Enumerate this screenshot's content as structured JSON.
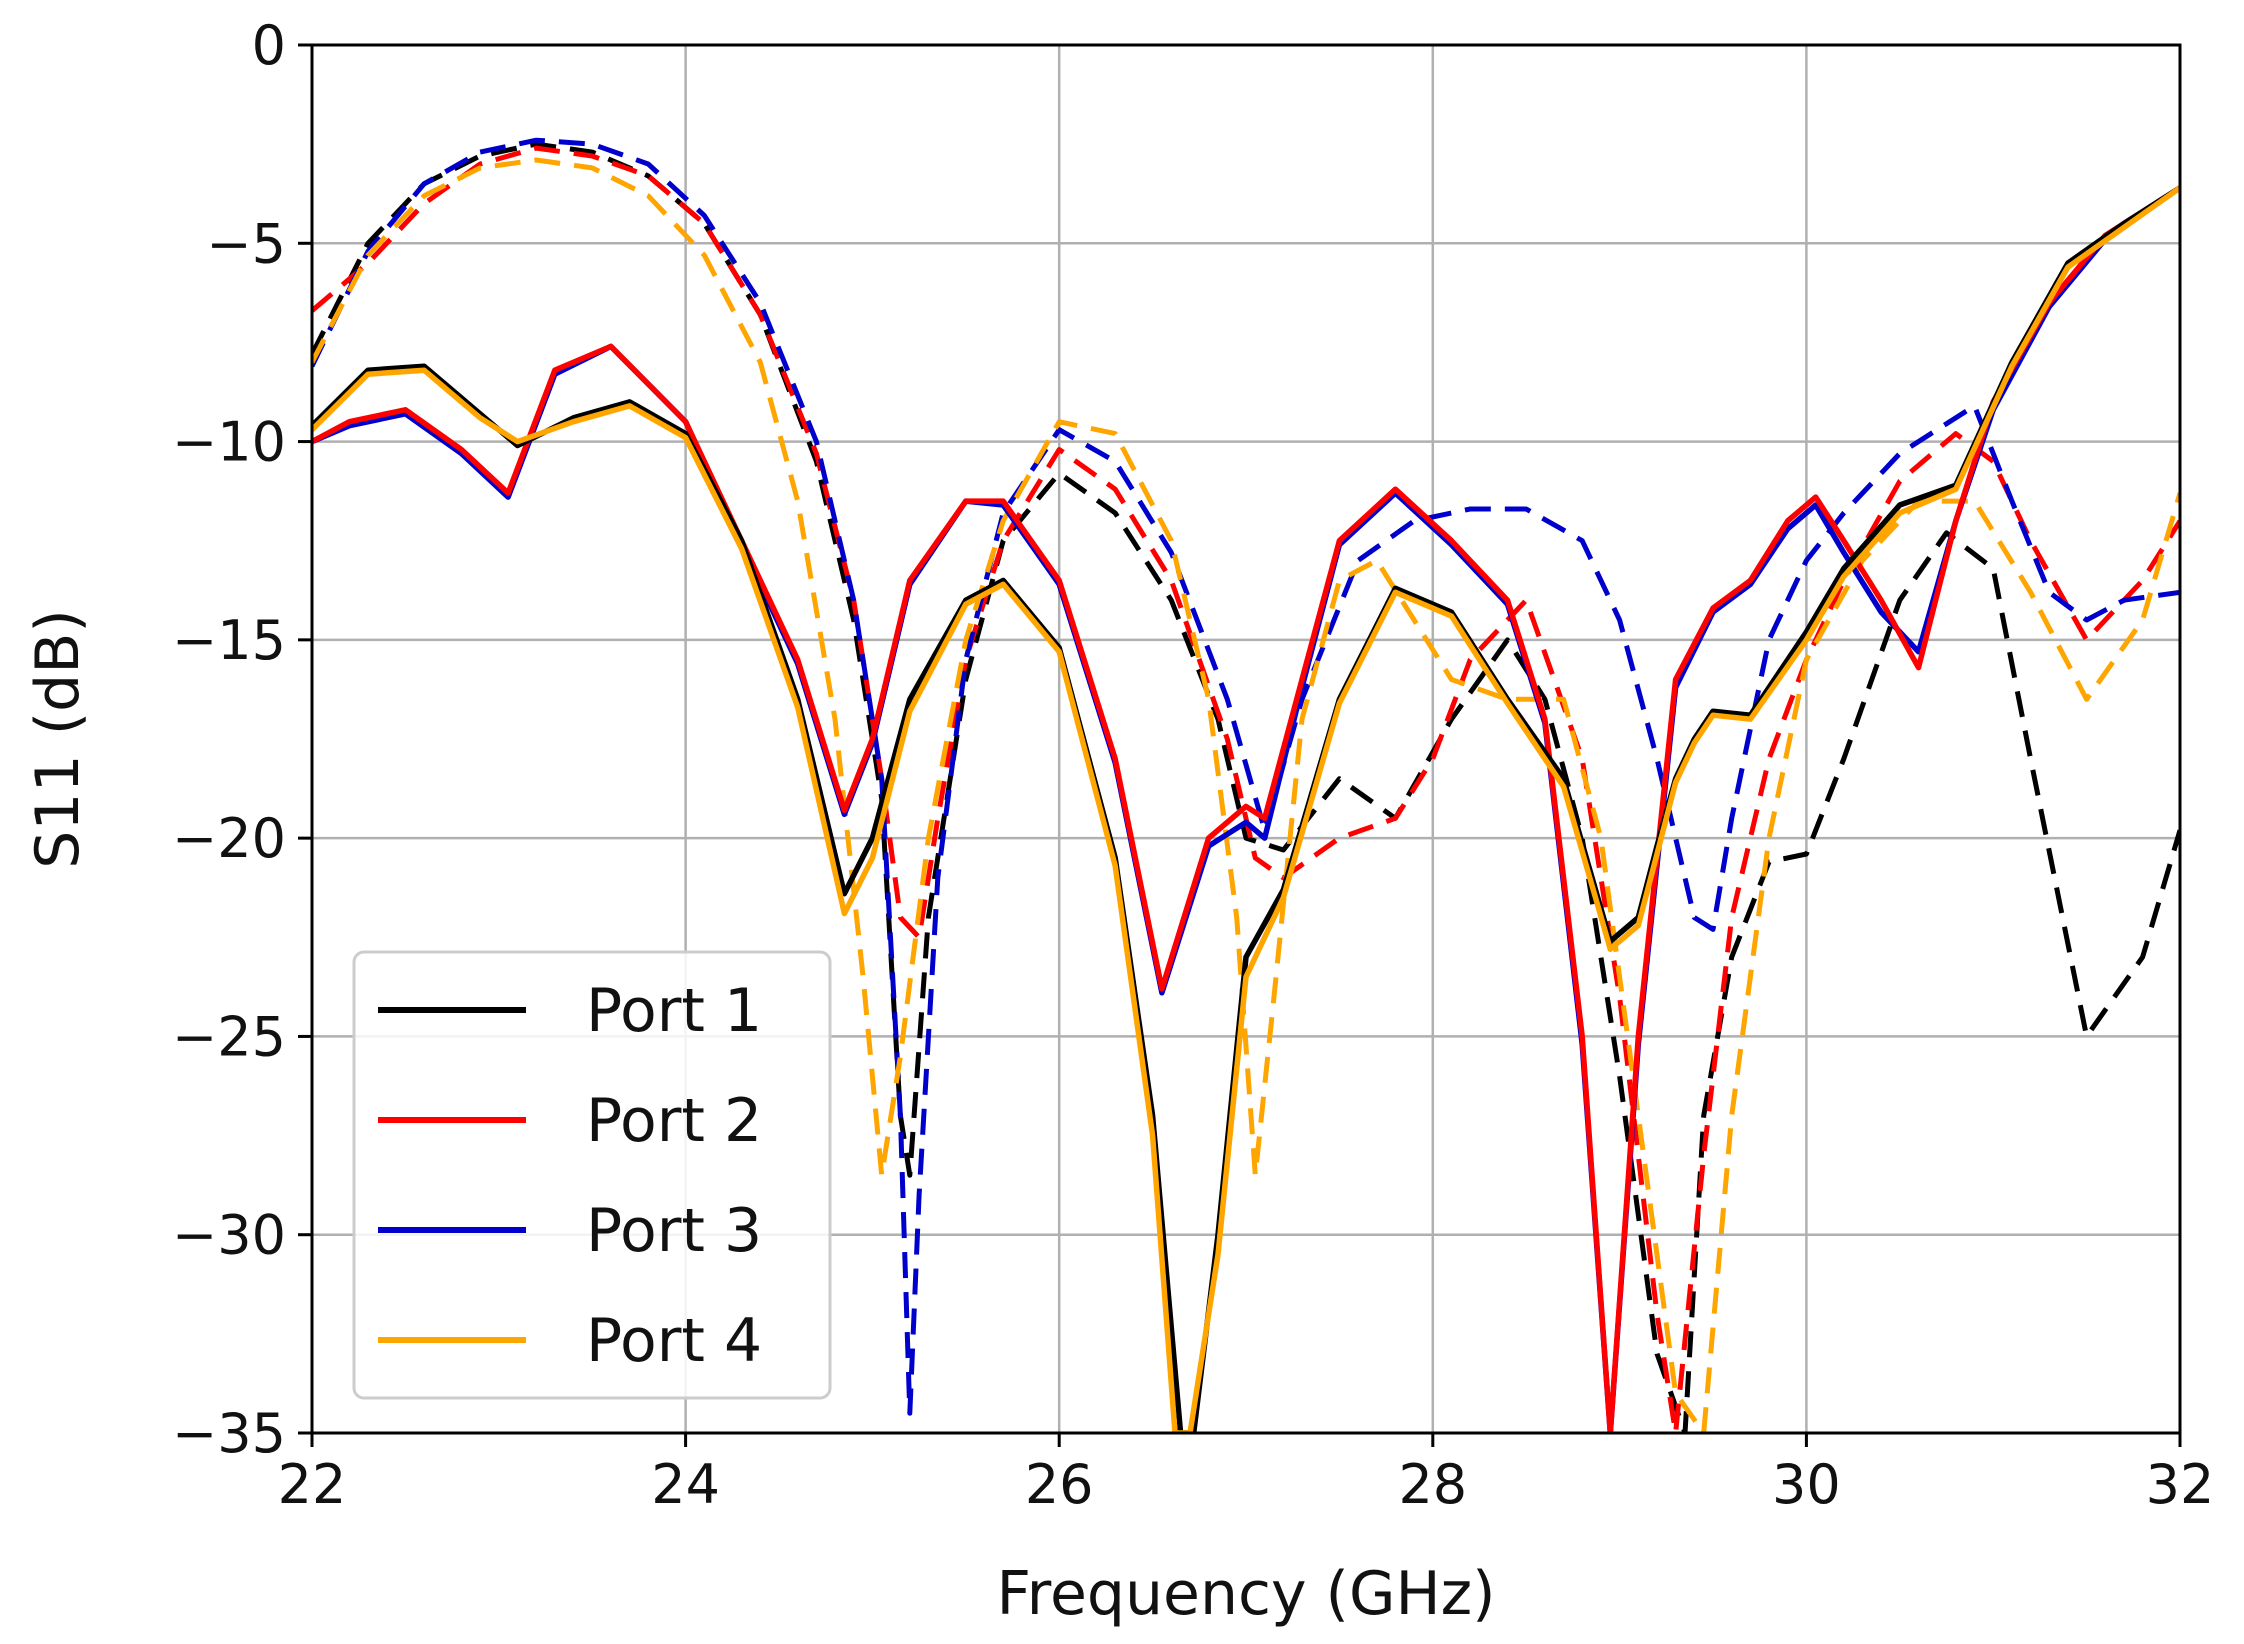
{
  "chart_data": {
    "type": "line",
    "title": "",
    "xlabel": "Frequency (GHz)",
    "ylabel": "S11 (dB)",
    "xlim": [
      22,
      32
    ],
    "ylim": [
      -35,
      0
    ],
    "xticks": [
      22,
      24,
      26,
      28,
      30,
      32
    ],
    "yticks": [
      0,
      -5,
      -10,
      -15,
      -20,
      -25,
      -30,
      -35
    ],
    "xtick_labels": [
      "22",
      "24",
      "26",
      "28",
      "30",
      "32"
    ],
    "ytick_labels": [
      "0",
      "−5",
      "−10",
      "−15",
      "−20",
      "−25",
      "−30",
      "−35"
    ],
    "grid": true,
    "legend_position": "bottom-left",
    "legend": [
      {
        "label": "Port 1",
        "color": "#000000"
      },
      {
        "label": "Port 2",
        "color": "#ff0000"
      },
      {
        "label": "Port 3",
        "color": "#0000cd"
      },
      {
        "label": "Port 4",
        "color": "#ffa500"
      }
    ],
    "series": [
      {
        "name": "Port 1",
        "style": "solid",
        "color": "#000000",
        "x": [
          22,
          22.3,
          22.6,
          22.9,
          23.1,
          23.4,
          23.7,
          24.0,
          24.3,
          24.6,
          24.85,
          25.0,
          25.2,
          25.5,
          25.7,
          26.0,
          26.3,
          26.5,
          26.65,
          26.72,
          26.85,
          27.0,
          27.2,
          27.5,
          27.8,
          28.1,
          28.4,
          28.7,
          28.95,
          29.1,
          29.2,
          29.3,
          29.4,
          29.5,
          29.7,
          30.0,
          30.2,
          30.5,
          30.8,
          31.1,
          31.4,
          31.7,
          32.0
        ],
        "y": [
          -9.6,
          -8.2,
          -8.1,
          -9.3,
          -10.1,
          -9.4,
          -9.0,
          -9.8,
          -12.5,
          -16.5,
          -21.4,
          -20.0,
          -16.5,
          -14.0,
          -13.5,
          -15.2,
          -20.5,
          -27.0,
          -35,
          -35,
          -30.0,
          -23.0,
          -21.3,
          -16.5,
          -13.7,
          -14.3,
          -16.5,
          -18.5,
          -22.6,
          -22.0,
          -20.2,
          -18.5,
          -17.5,
          -16.8,
          -16.9,
          -14.8,
          -13.2,
          -11.6,
          -11.1,
          -8.0,
          -5.5,
          -4.5,
          -3.6
        ]
      },
      {
        "name": "Port 2",
        "style": "solid",
        "color": "#ff0000",
        "x": [
          22,
          22.2,
          22.5,
          22.8,
          23.05,
          23.3,
          23.6,
          24.0,
          24.3,
          24.6,
          24.85,
          25.0,
          25.2,
          25.5,
          25.7,
          26.0,
          26.3,
          26.55,
          26.8,
          27.0,
          27.1,
          27.3,
          27.5,
          27.8,
          28.1,
          28.4,
          28.6,
          28.8,
          28.95,
          29.1,
          29.3,
          29.5,
          29.7,
          29.9,
          30.05,
          30.2,
          30.4,
          30.6,
          30.8,
          31.0,
          31.3,
          31.6,
          32.0
        ],
        "y": [
          -10.0,
          -9.5,
          -9.2,
          -10.2,
          -11.3,
          -8.2,
          -7.6,
          -9.5,
          -12.5,
          -15.5,
          -19.3,
          -17.5,
          -13.5,
          -11.5,
          -11.5,
          -13.5,
          -18.0,
          -23.8,
          -20.0,
          -19.2,
          -19.5,
          -16.0,
          -12.5,
          -11.2,
          -12.5,
          -14.0,
          -17.0,
          -25.0,
          -35,
          -25.0,
          -16.0,
          -14.2,
          -13.5,
          -12.0,
          -11.4,
          -12.5,
          -14.0,
          -15.7,
          -12.0,
          -9.0,
          -6.5,
          -4.8,
          -3.6
        ]
      },
      {
        "name": "Port 3",
        "style": "solid",
        "color": "#0000cd",
        "x": [
          22,
          22.2,
          22.5,
          22.8,
          23.05,
          23.3,
          23.6,
          24.0,
          24.3,
          24.6,
          24.85,
          25.0,
          25.2,
          25.5,
          25.7,
          26.0,
          26.3,
          26.55,
          26.8,
          27.0,
          27.1,
          27.3,
          27.5,
          27.8,
          28.1,
          28.4,
          28.6,
          28.8,
          28.95,
          29.1,
          29.3,
          29.5,
          29.7,
          29.9,
          30.05,
          30.2,
          30.4,
          30.6,
          30.8,
          31.0,
          31.3,
          31.6,
          32.0
        ],
        "y": [
          -10.0,
          -9.6,
          -9.3,
          -10.3,
          -11.4,
          -8.3,
          -7.6,
          -9.5,
          -12.6,
          -15.6,
          -19.4,
          -17.6,
          -13.6,
          -11.5,
          -11.6,
          -13.6,
          -18.1,
          -23.9,
          -20.2,
          -19.6,
          -20.0,
          -16.2,
          -12.6,
          -11.3,
          -12.6,
          -14.1,
          -17.1,
          -25.2,
          -35,
          -25.2,
          -16.2,
          -14.3,
          -13.6,
          -12.2,
          -11.6,
          -12.8,
          -14.3,
          -15.3,
          -12.0,
          -9.2,
          -6.6,
          -4.9,
          -3.6
        ]
      },
      {
        "name": "Port 4",
        "style": "solid",
        "color": "#ffa500",
        "x": [
          22,
          22.3,
          22.6,
          22.9,
          23.1,
          23.4,
          23.7,
          24.0,
          24.3,
          24.6,
          24.85,
          25.0,
          25.2,
          25.5,
          25.7,
          26.0,
          26.3,
          26.5,
          26.62,
          26.7,
          26.85,
          27.0,
          27.2,
          27.5,
          27.8,
          28.1,
          28.4,
          28.7,
          28.95,
          29.1,
          29.2,
          29.3,
          29.4,
          29.5,
          29.7,
          30.0,
          30.2,
          30.5,
          30.8,
          31.1,
          31.4,
          31.7,
          32.0
        ],
        "y": [
          -9.7,
          -8.3,
          -8.2,
          -9.4,
          -10.0,
          -9.5,
          -9.1,
          -9.9,
          -12.7,
          -16.7,
          -21.9,
          -20.5,
          -16.8,
          -14.1,
          -13.6,
          -15.3,
          -20.7,
          -27.5,
          -35,
          -35,
          -30.5,
          -23.5,
          -21.5,
          -16.6,
          -13.8,
          -14.4,
          -16.6,
          -18.7,
          -22.8,
          -22.2,
          -20.4,
          -18.6,
          -17.6,
          -16.9,
          -17.0,
          -15.0,
          -13.4,
          -11.8,
          -11.2,
          -8.1,
          -5.6,
          -4.6,
          -3.6
        ]
      },
      {
        "name": "Port 1",
        "style": "dashed",
        "color": "#000000",
        "x": [
          22,
          22.3,
          22.6,
          22.9,
          23.2,
          23.5,
          23.8,
          24.1,
          24.4,
          24.7,
          24.9,
          25.05,
          25.15,
          25.2,
          25.3,
          25.5,
          25.7,
          26.0,
          26.3,
          26.6,
          26.85,
          27.0,
          27.2,
          27.5,
          27.8,
          28.1,
          28.4,
          28.6,
          28.8,
          29.0,
          29.2,
          29.35,
          29.45,
          29.6,
          29.8,
          30.0,
          30.2,
          30.5,
          30.75,
          31.0,
          31.2,
          31.5,
          31.8,
          32.0
        ],
        "y": [
          -7.8,
          -5.0,
          -3.5,
          -2.8,
          -2.5,
          -2.7,
          -3.3,
          -4.5,
          -6.8,
          -10.5,
          -14.5,
          -19.0,
          -27.0,
          -28.5,
          -22.0,
          -16.0,
          -12.5,
          -10.8,
          -11.8,
          -14.0,
          -17.0,
          -20.0,
          -20.3,
          -18.5,
          -19.5,
          -17.0,
          -15.0,
          -16.5,
          -20.0,
          -26.0,
          -33.0,
          -35,
          -27.0,
          -23.0,
          -20.6,
          -20.4,
          -18.0,
          -14.0,
          -12.3,
          -13.2,
          -18.0,
          -25.0,
          -23.0,
          -19.8
        ]
      },
      {
        "name": "Port 2",
        "style": "dashed",
        "color": "#ff0000",
        "x": [
          22,
          22.3,
          22.6,
          22.9,
          23.2,
          23.5,
          23.8,
          24.1,
          24.4,
          24.7,
          24.9,
          25.05,
          25.15,
          25.25,
          25.35,
          25.5,
          25.7,
          26.0,
          26.3,
          26.6,
          26.9,
          27.05,
          27.2,
          27.5,
          27.8,
          28.0,
          28.2,
          28.5,
          28.8,
          29.0,
          29.2,
          29.3,
          29.45,
          29.6,
          29.8,
          30.0,
          30.2,
          30.5,
          30.8,
          31.0,
          31.2,
          31.5,
          31.8,
          32.0
        ],
        "y": [
          -6.7,
          -5.5,
          -4.0,
          -3.0,
          -2.6,
          -2.8,
          -3.3,
          -4.5,
          -6.8,
          -10.3,
          -14.0,
          -18.5,
          -22.0,
          -22.5,
          -19.5,
          -15.5,
          -12.5,
          -10.2,
          -11.2,
          -13.5,
          -17.5,
          -20.5,
          -21.0,
          -20.0,
          -19.5,
          -18.0,
          -15.5,
          -14.0,
          -18.0,
          -24.0,
          -32.0,
          -35,
          -28.0,
          -22.0,
          -18.0,
          -15.5,
          -13.5,
          -11.0,
          -9.8,
          -10.5,
          -12.5,
          -15.0,
          -13.5,
          -12.0
        ]
      },
      {
        "name": "Port 3",
        "style": "dashed",
        "color": "#0000cd",
        "x": [
          22,
          22.3,
          22.6,
          22.9,
          23.2,
          23.5,
          23.8,
          24.1,
          24.4,
          24.7,
          24.9,
          25.05,
          25.15,
          25.2,
          25.25,
          25.35,
          25.5,
          25.7,
          26.0,
          26.3,
          26.6,
          26.9,
          27.1,
          27.3,
          27.6,
          27.9,
          28.2,
          28.5,
          28.8,
          29.0,
          29.2,
          29.4,
          29.5,
          29.6,
          29.8,
          30.0,
          30.2,
          30.5,
          30.9,
          31.1,
          31.3,
          31.5,
          31.7,
          32.0
        ],
        "y": [
          -8.1,
          -5.2,
          -3.5,
          -2.7,
          -2.4,
          -2.5,
          -3.0,
          -4.3,
          -6.5,
          -10.0,
          -14.0,
          -18.5,
          -27.0,
          -34.5,
          -29.0,
          -21.0,
          -15.5,
          -11.8,
          -9.7,
          -10.5,
          -12.8,
          -16.5,
          -19.8,
          -16.5,
          -13.0,
          -12.0,
          -11.7,
          -11.7,
          -12.5,
          -14.5,
          -18.0,
          -22.0,
          -22.3,
          -19.5,
          -15.0,
          -13.0,
          -11.8,
          -10.3,
          -9.1,
          -11.5,
          -13.8,
          -14.5,
          -14.0,
          -13.8
        ]
      },
      {
        "name": "Port 4",
        "style": "dashed",
        "color": "#ffa500",
        "x": [
          22,
          22.3,
          22.6,
          22.9,
          23.2,
          23.5,
          23.8,
          24.1,
          24.4,
          24.6,
          24.8,
          24.95,
          25.05,
          25.15,
          25.3,
          25.5,
          25.7,
          26.0,
          26.3,
          26.6,
          26.8,
          26.95,
          27.05,
          27.15,
          27.3,
          27.5,
          27.7,
          27.9,
          28.1,
          28.4,
          28.7,
          28.9,
          29.1,
          29.3,
          29.45,
          29.6,
          29.8,
          30.0,
          30.3,
          30.6,
          30.9,
          31.2,
          31.5,
          31.8,
          32.0
        ],
        "y": [
          -8.0,
          -5.3,
          -3.8,
          -3.1,
          -2.9,
          -3.1,
          -3.8,
          -5.3,
          -8.0,
          -11.5,
          -17.0,
          -23.5,
          -28.5,
          -25.5,
          -20.0,
          -15.0,
          -12.0,
          -9.5,
          -9.8,
          -12.5,
          -16.5,
          -22.0,
          -28.5,
          -24.0,
          -17.0,
          -13.5,
          -13.0,
          -14.5,
          -16.0,
          -16.5,
          -16.5,
          -20.0,
          -27.0,
          -34.0,
          -35,
          -27.0,
          -20.0,
          -15.5,
          -13.0,
          -11.5,
          -11.5,
          -13.8,
          -16.5,
          -14.5,
          -11.3
        ]
      }
    ]
  }
}
